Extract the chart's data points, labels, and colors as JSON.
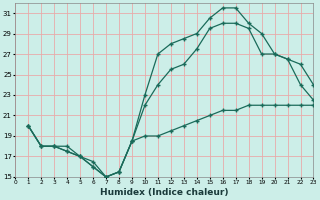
{
  "xlabel": "Humidex (Indice chaleur)",
  "bg_color": "#cceee8",
  "grid_color": "#e8aaaa",
  "line_color": "#1a6b5a",
  "xmin": 0,
  "xmax": 23,
  "ymin": 15,
  "ymax": 32,
  "xticks": [
    0,
    1,
    2,
    3,
    4,
    5,
    6,
    7,
    8,
    9,
    10,
    11,
    12,
    13,
    14,
    15,
    16,
    17,
    18,
    19,
    20,
    21,
    22,
    23
  ],
  "yticks": [
    15,
    17,
    19,
    21,
    23,
    25,
    27,
    29,
    31
  ],
  "line1_x": [
    1,
    2,
    3,
    4,
    5,
    6,
    7,
    8,
    9,
    10,
    11,
    12,
    13,
    14,
    15,
    16,
    17,
    18,
    19,
    20,
    21,
    22,
    23
  ],
  "line1_y": [
    20,
    18,
    18,
    18,
    17,
    16.5,
    15,
    15.5,
    18.5,
    19,
    19,
    19.5,
    20,
    20.5,
    21,
    21.5,
    21.5,
    22,
    22,
    22,
    22,
    22,
    22
  ],
  "line2_x": [
    1,
    2,
    3,
    4,
    5,
    6,
    7,
    8,
    9,
    10,
    11,
    12,
    13,
    14,
    15,
    16,
    17,
    18,
    19,
    20,
    21,
    22,
    23
  ],
  "line2_y": [
    20,
    18,
    18,
    17.5,
    17,
    16,
    15,
    15.5,
    18.5,
    23,
    27,
    28,
    28.5,
    29,
    30.5,
    31.5,
    31.5,
    30,
    29,
    27,
    26.5,
    24,
    22.5
  ],
  "line3_x": [
    1,
    2,
    3,
    4,
    5,
    6,
    7,
    8,
    9,
    10,
    11,
    12,
    13,
    14,
    15,
    16,
    17,
    18,
    19,
    20,
    21,
    22,
    23
  ],
  "line3_y": [
    20,
    18,
    18,
    17.5,
    17,
    16,
    15,
    15.5,
    18.5,
    22,
    24,
    25.5,
    26,
    27.5,
    29.5,
    30,
    30,
    29.5,
    27,
    27,
    26.5,
    26,
    24
  ]
}
